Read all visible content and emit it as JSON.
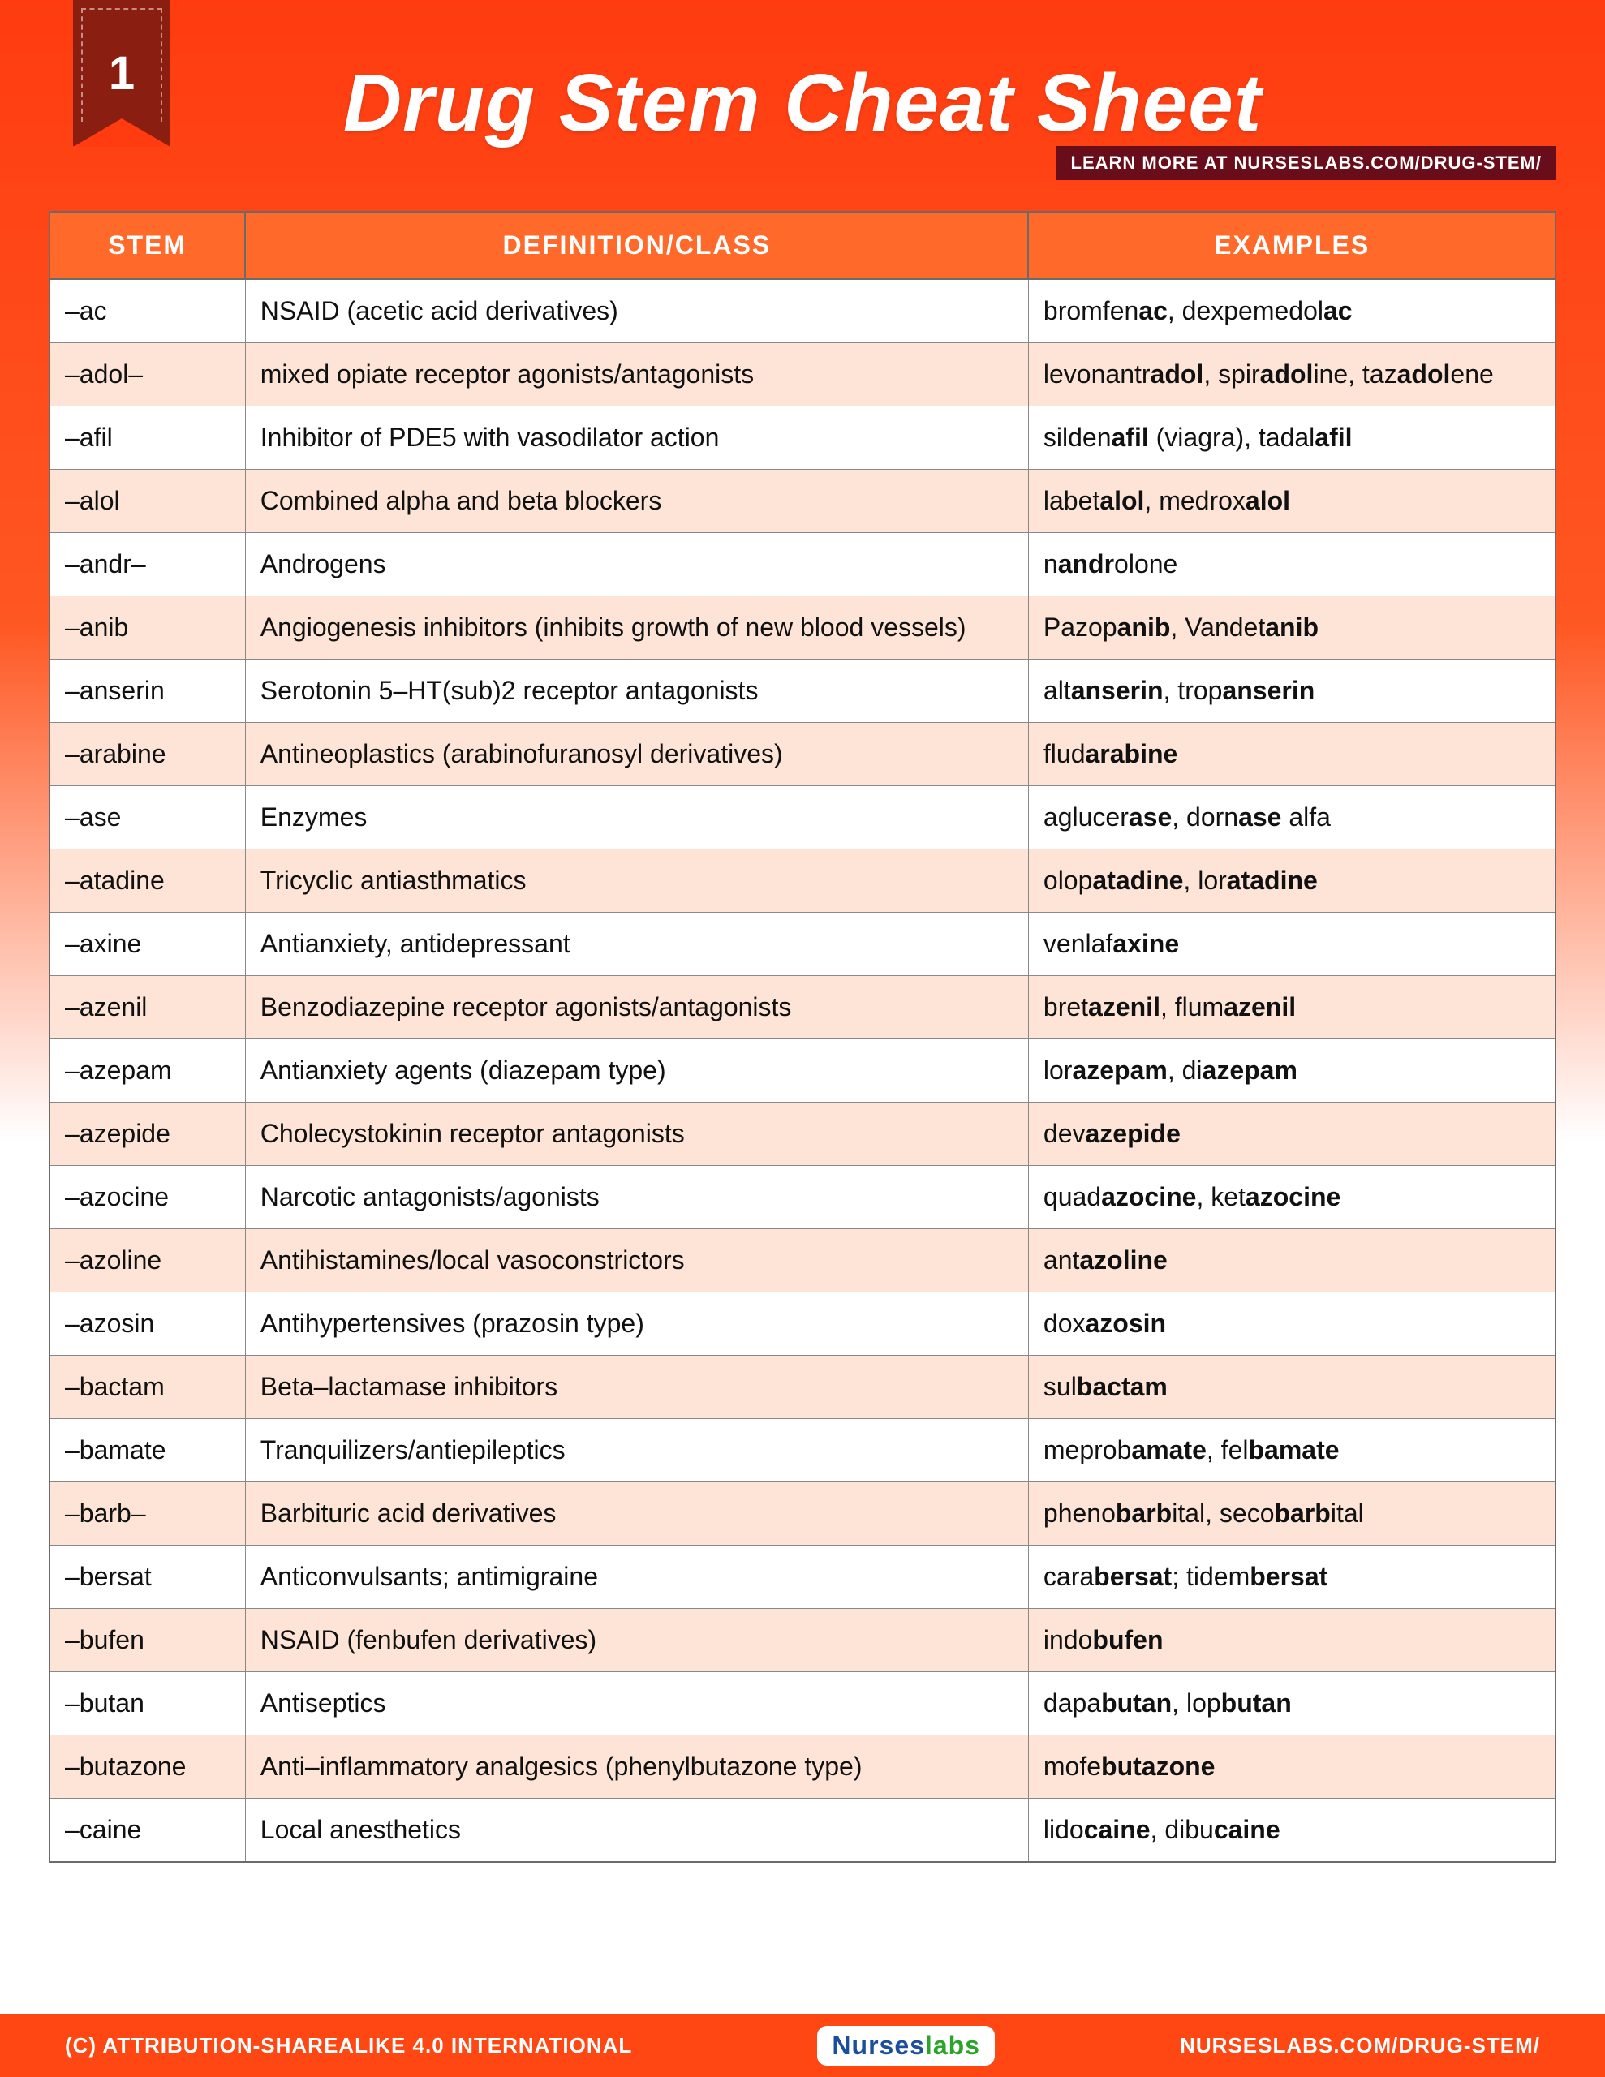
{
  "page_number": "1",
  "title": "Drug Stem Cheat Sheet",
  "learn_more_prefix": "LEARN MORE AT ",
  "learn_more_site": "NURSESLABS.COM/DRUG-STEM/",
  "colors": {
    "bg_gradient_top": "#ff3b0f",
    "bg_gradient_mid": "#ff5722",
    "header_row_bg": "#ff6a2b",
    "row_alt_bg": "#fde4d6",
    "ribbon_bg": "#8a1f11",
    "learnmore_bg": "#6a0d1a",
    "footer_bg": "#ff4713",
    "border": "#6b6b6b",
    "text": "#111111"
  },
  "typography": {
    "title_fontsize": 100,
    "title_style": "italic",
    "header_fontsize": 32,
    "cell_fontsize": 32,
    "footer_fontsize": 26
  },
  "columns": [
    "STEM",
    "DEFINITION/CLASS",
    "EXAMPLES"
  ],
  "column_widths_pct": [
    13,
    52,
    35
  ],
  "rows": [
    {
      "stem": "–ac",
      "def": "NSAID (acetic acid derivatives)",
      "ex": "bromfen<b>ac</b>, dexpemedol<b>ac</b>"
    },
    {
      "stem": "–adol–",
      "def": "mixed opiate receptor agonists/antagonists",
      "ex": "levonantr<b>adol</b>, spir<b>adol</b>ine, taz<b>adol</b>ene"
    },
    {
      "stem": "–afil",
      "def": "Inhibitor of PDE5 with vasodilator action",
      "ex": "silden<b>afil</b> (viagra), tadal<b>afil</b>"
    },
    {
      "stem": "–alol",
      "def": "Combined alpha and beta blockers",
      "ex": "labet<b>alol</b>, medrox<b>alol</b>"
    },
    {
      "stem": "–andr–",
      "def": "Androgens",
      "ex": "n<b>andr</b>olone"
    },
    {
      "stem": "–anib",
      "def": "Angiogenesis inhibitors (inhibits growth of new blood vessels)",
      "ex": "Pazop<b>anib</b>, Vandet<b>anib</b>"
    },
    {
      "stem": "–anserin",
      "def": "Serotonin 5–HT(sub)2 receptor antagonists",
      "ex": "alt<b>anserin</b>, trop<b>anserin</b>"
    },
    {
      "stem": "–arabine",
      "def": "Antineoplastics (arabinofuranosyl derivatives)",
      "ex": "flud<b>arabine</b>"
    },
    {
      "stem": "–ase",
      "def": "Enzymes",
      "ex": "aglucer<b>ase</b>, dorn<b>ase</b> alfa"
    },
    {
      "stem": "–atadine",
      "def": "Tricyclic antiasthmatics",
      "ex": "olop<b>atadine</b>, lor<b>atadine</b>"
    },
    {
      "stem": "–axine",
      "def": "Antianxiety, antidepressant",
      "ex": "venlaf<b>axine</b>"
    },
    {
      "stem": "–azenil",
      "def": "Benzodiazepine receptor agonists/antagonists",
      "ex": "bret<b>azenil</b>, flum<b>azenil</b>"
    },
    {
      "stem": "–azepam",
      "def": "Antianxiety agents (diazepam type)",
      "ex": "lor<b>azepam</b>, di<b>azepam</b>"
    },
    {
      "stem": "–azepide",
      "def": "Cholecystokinin receptor antagonists",
      "ex": "dev<b>azepide</b>"
    },
    {
      "stem": "–azocine",
      "def": "Narcotic antagonists/agonists",
      "ex": "quad<b>azocine</b>, ket<b>azocine</b>"
    },
    {
      "stem": "–azoline",
      "def": "Antihistamines/local vasoconstrictors",
      "ex": "ant<b>azoline</b>"
    },
    {
      "stem": "–azosin",
      "def": "Antihypertensives (prazosin type)",
      "ex": "dox<b>azosin</b>"
    },
    {
      "stem": "–bactam",
      "def": "Beta–lactamase inhibitors",
      "ex": "sul<b>bactam</b>"
    },
    {
      "stem": "–bamate",
      "def": "Tranquilizers/antiepileptics",
      "ex": "meprob<b>amate</b>, fel<b>bamate</b>"
    },
    {
      "stem": "–barb–",
      "def": "Barbituric acid derivatives",
      "ex": "pheno<b>barb</b>ital, seco<b>barb</b>ital"
    },
    {
      "stem": "–bersat",
      "def": "Anticonvulsants; antimigraine",
      "ex": "cara<b>bersat</b>; tidem<b>bersat</b>"
    },
    {
      "stem": "–bufen",
      "def": "NSAID (fenbufen derivatives)",
      "ex": "indo<b>bufen</b>"
    },
    {
      "stem": "–butan",
      "def": "Antiseptics",
      "ex": "dapa<b>butan</b>, lop<b>butan</b>"
    },
    {
      "stem": "–butazone",
      "def": "Anti–inflammatory analgesics (phenylbutazone type)",
      "ex": "mofe<b>butazone</b>"
    },
    {
      "stem": "–caine",
      "def": "Local anesthetics",
      "ex": "lido<b>caine</b>, dibu<b>caine</b>"
    }
  ],
  "footer": {
    "left": "(C) ATTRIBUTION-SHAREALIKE 4.0 INTERNATIONAL",
    "logo_nurses": "Nurses",
    "logo_labs": "labs",
    "right": "NURSESLABS.COM/DRUG-STEM/"
  }
}
